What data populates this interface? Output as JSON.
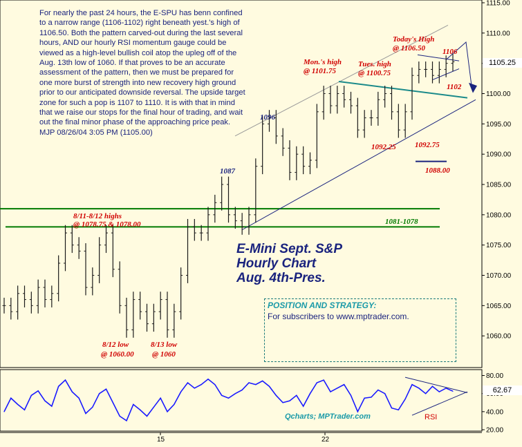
{
  "commentary": "For nearly the past 24 hours, the E-SPU has benn confined to a narrow range (1106-1102) right beneath yest.'s high of 1106.50. Both the pattern carved-out during the last several hours, AND our hourly RSI momentum gauge could be viewed as a high-level bullish coil atop the upleg off of the Aug. 13th low of 1060. If that proves to be an accurate assessment of the pattern, then we must be prepared for one more burst of strength into new recovery high ground prior to our anticipated downside reversal. The upside target zone for such a pop is 1107 to 1110. It is with that in mind that we raise our stops for the final hour of trading, and wait out the final minor phase of the approaching price peak. MJP 08/26/04 3:05 PM (1105.00)",
  "title": {
    "line1": "E-Mini Sept. S&P",
    "line2": "Hourly Chart",
    "line3": "Aug. 4th-Pres."
  },
  "strategy": {
    "heading": "POSITION AND STRATEGY:",
    "text": "For subscribers to www.mptrader.com."
  },
  "annotations": {
    "highs_0811": "8/11-8/12 highs",
    "highs_0811_val": "@ 1078.75 & 1078.00",
    "low_0812": "8/12 low",
    "low_0812_val": "@ 1060.00",
    "low_0813": "8/13 low",
    "low_0813_val": "@ 1060",
    "l1087": "1087",
    "l1096": "1096",
    "mon_high": "Mon.'s high",
    "mon_high_val": "@ 1101.75",
    "tues_high": "Tues. high",
    "tues_high_val": "@ 1100.75",
    "today_high": "Today's High",
    "today_high_val": "@ 1106.50",
    "l1106": "1106",
    "l1102": "1102",
    "l1092_25": "1092.25",
    "l1092_75": "1092.75",
    "l1088": "1088.00",
    "zone": "1081-1078"
  },
  "last_price": "1105.25",
  "rsi_last": "62.67",
  "credit": "Qcharts; MPTrader.com",
  "rsi_label": "RSI",
  "colors": {
    "background": "#fffbe0",
    "bars": "#1a1a1a",
    "support": "#007a00",
    "channel": "#1a237e",
    "neckline": "#1a8a8a",
    "rsi_line": "#1a1aff",
    "annotation_red": "#d00000",
    "annotation_navy": "#1a237e"
  },
  "chart_data": [
    {
      "type": "line",
      "subtype": "ohlc-bars",
      "ylim": [
        1055,
        1115
      ],
      "yticks": [
        1060,
        1065,
        1070,
        1075,
        1080,
        1085,
        1090,
        1095,
        1100,
        1105,
        1110,
        1115
      ],
      "xtick_labels": [
        "15",
        "22"
      ],
      "x": [
        0,
        10,
        20,
        30,
        40,
        50,
        60,
        70,
        80,
        90,
        100,
        110,
        120,
        130,
        140,
        150,
        160,
        170,
        180,
        190,
        200,
        210,
        220,
        230,
        240,
        250,
        260,
        270,
        280,
        290,
        300,
        310,
        320,
        330,
        340,
        350,
        360,
        370,
        380,
        390,
        400,
        410,
        420,
        430,
        440,
        450,
        460,
        470,
        480,
        490,
        500,
        510,
        520,
        530,
        540,
        550,
        560,
        570,
        580,
        590,
        600,
        610,
        620,
        630,
        640,
        650,
        660
      ],
      "series": [
        {
          "values": [
            1065,
            1064,
            1067,
            1066,
            1065,
            1068,
            1066,
            1067,
            1072,
            1077,
            1075,
            1074,
            1068,
            1070,
            1075,
            1077,
            1071,
            1065,
            1061,
            1066,
            1064,
            1062,
            1064,
            1066,
            1061,
            1064,
            1070,
            1078,
            1077,
            1077,
            1080,
            1082,
            1085,
            1080,
            1079,
            1078,
            1080,
            1088,
            1095,
            1096,
            1093,
            1091,
            1087,
            1090,
            1088,
            1089,
            1097,
            1100,
            1098,
            1100,
            1099,
            1098,
            1094,
            1096,
            1096,
            1099,
            1100,
            1097,
            1094,
            1097,
            1103,
            1104,
            1104,
            1103,
            1104,
            1105,
            1105.25
          ]
        }
      ],
      "lines": [
        {
          "name": "support-upper",
          "value": 1081
        },
        {
          "name": "support-lower",
          "value": 1078
        },
        {
          "name": "target",
          "value": 1088
        }
      ]
    },
    {
      "type": "line",
      "ylim": [
        20,
        85
      ],
      "yticks": [
        20,
        40,
        60,
        80
      ],
      "x": [
        0,
        10,
        20,
        30,
        40,
        50,
        60,
        70,
        80,
        90,
        100,
        110,
        120,
        130,
        140,
        150,
        160,
        170,
        180,
        190,
        200,
        210,
        220,
        230,
        240,
        250,
        260,
        270,
        280,
        290,
        300,
        310,
        320,
        330,
        340,
        350,
        360,
        370,
        380,
        390,
        400,
        410,
        420,
        430,
        440,
        450,
        460,
        470,
        480,
        490,
        500,
        510,
        520,
        530,
        540,
        550,
        560,
        570,
        580,
        590,
        600,
        610,
        620,
        630,
        640,
        650,
        660
      ],
      "series": [
        {
          "name": "RSI",
          "values": [
            40,
            55,
            48,
            42,
            58,
            63,
            52,
            46,
            68,
            75,
            62,
            55,
            38,
            45,
            60,
            65,
            50,
            35,
            30,
            48,
            42,
            35,
            45,
            55,
            40,
            48,
            62,
            72,
            66,
            70,
            76,
            70,
            58,
            55,
            60,
            64,
            72,
            70,
            74,
            68,
            58,
            50,
            52,
            58,
            46,
            60,
            72,
            75,
            62,
            66,
            70,
            58,
            40,
            55,
            56,
            64,
            60,
            44,
            42,
            54,
            70,
            66,
            60,
            68,
            62,
            66,
            62.67
          ]
        }
      ]
    }
  ]
}
